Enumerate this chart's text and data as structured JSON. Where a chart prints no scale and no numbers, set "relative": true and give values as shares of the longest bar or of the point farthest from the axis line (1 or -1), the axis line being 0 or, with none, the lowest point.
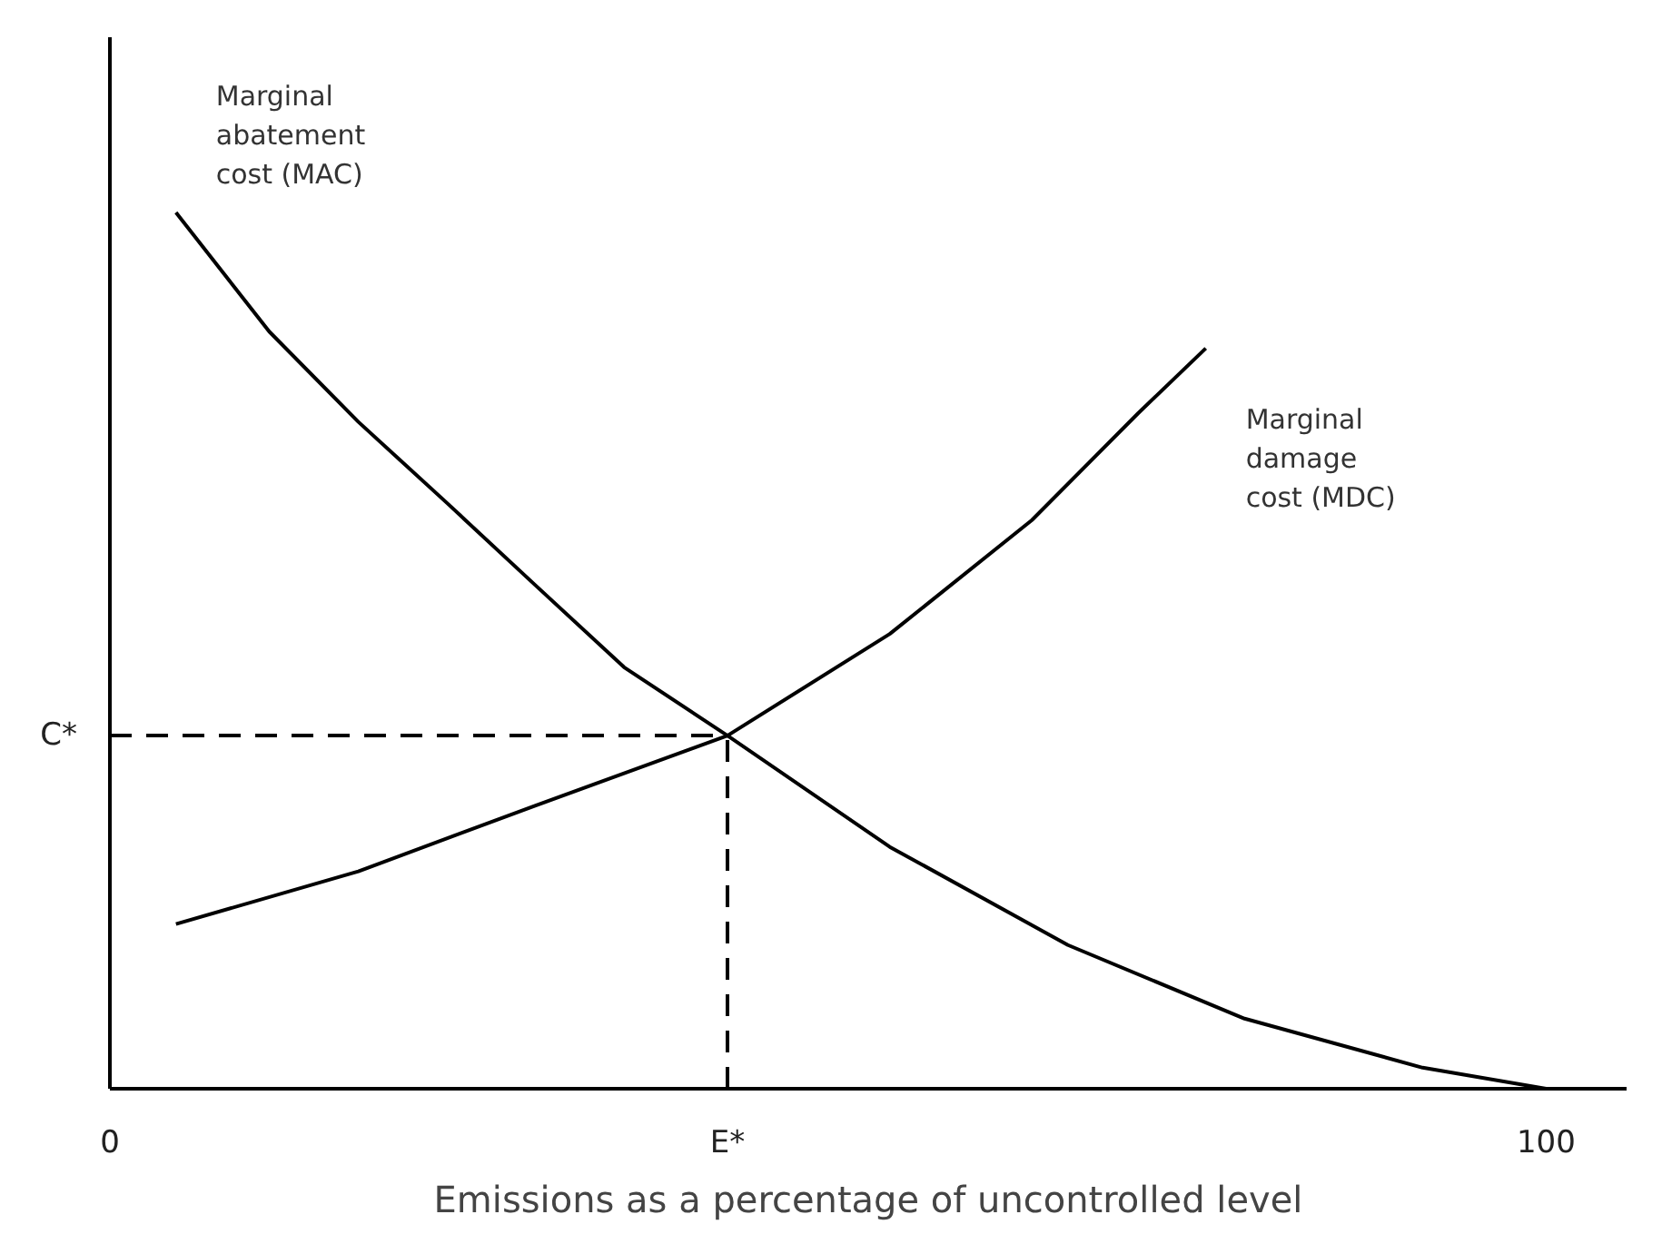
{
  "chart_data": {
    "type": "line",
    "relative": true,
    "xlabel": "Emissions as a percentage of uncontrolled level",
    "xlim": [
      0,
      105.6
    ],
    "xticks": [
      0,
      100
    ],
    "series": [
      {
        "name": "Marginal abatement cost (MAC)",
        "color": "#000000",
        "x": [
          4.6,
          11.1,
          17.3,
          23.5,
          29.6,
          35.8,
          43.0,
          54.3,
          66.7,
          79.0,
          91.4,
          100
        ],
        "values": [
          1.0,
          0.864,
          0.761,
          0.668,
          0.575,
          0.481,
          0.403,
          0.276,
          0.164,
          0.08,
          0.024,
          0
        ]
      },
      {
        "name": "Marginal damage cost (MDC)",
        "color": "#000000",
        "x": [
          4.6,
          17.3,
          29.6,
          43.0,
          54.3,
          64.2,
          71.6,
          76.3
        ],
        "values": [
          0.188,
          0.248,
          0.323,
          0.403,
          0.519,
          0.649,
          0.771,
          0.845
        ]
      }
    ],
    "ref_lines": [
      {
        "axis": "y",
        "value": 0.403,
        "label": "C*",
        "line_style": "dashed",
        "color": "#000000"
      },
      {
        "axis": "x",
        "value": 43.0,
        "label": "E*",
        "line_style": "dashed",
        "color": "#000000"
      }
    ],
    "grid": false,
    "marker": "none",
    "line_style": "solid"
  }
}
